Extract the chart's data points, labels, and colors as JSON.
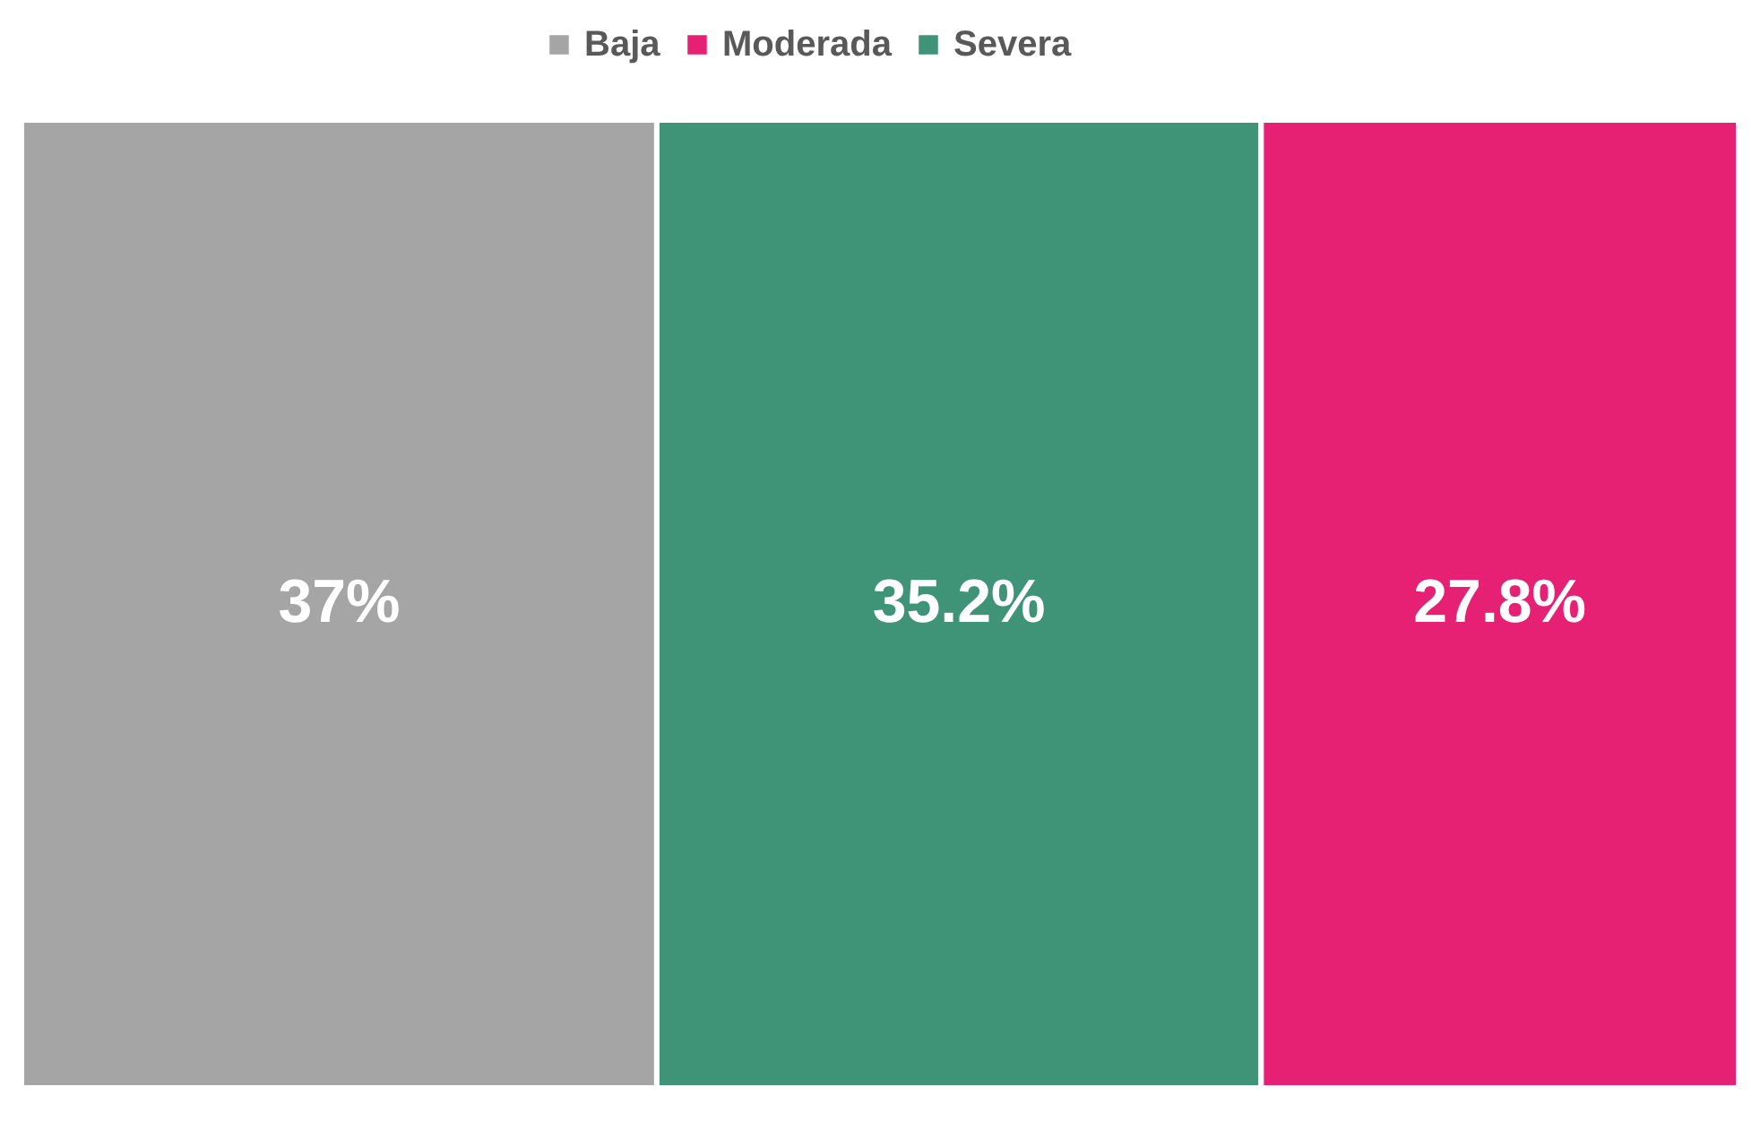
{
  "chart_data": {
    "type": "bar",
    "orientation": "horizontal",
    "stacked": true,
    "categories": [
      null
    ],
    "legend": "top",
    "tick_labels": false,
    "series": [
      {
        "name": "Baja",
        "color": "#a5a5a5",
        "values": [
          37
        ],
        "value_labels": [
          "37%"
        ]
      },
      {
        "name": "Severa",
        "color": "#3f9478",
        "values": [
          35.2
        ],
        "value_labels": [
          "35.2%"
        ]
      },
      {
        "name": "Moderada",
        "color": "#e62174",
        "values": [
          27.8
        ],
        "value_labels": [
          "27.8%"
        ]
      }
    ]
  }
}
